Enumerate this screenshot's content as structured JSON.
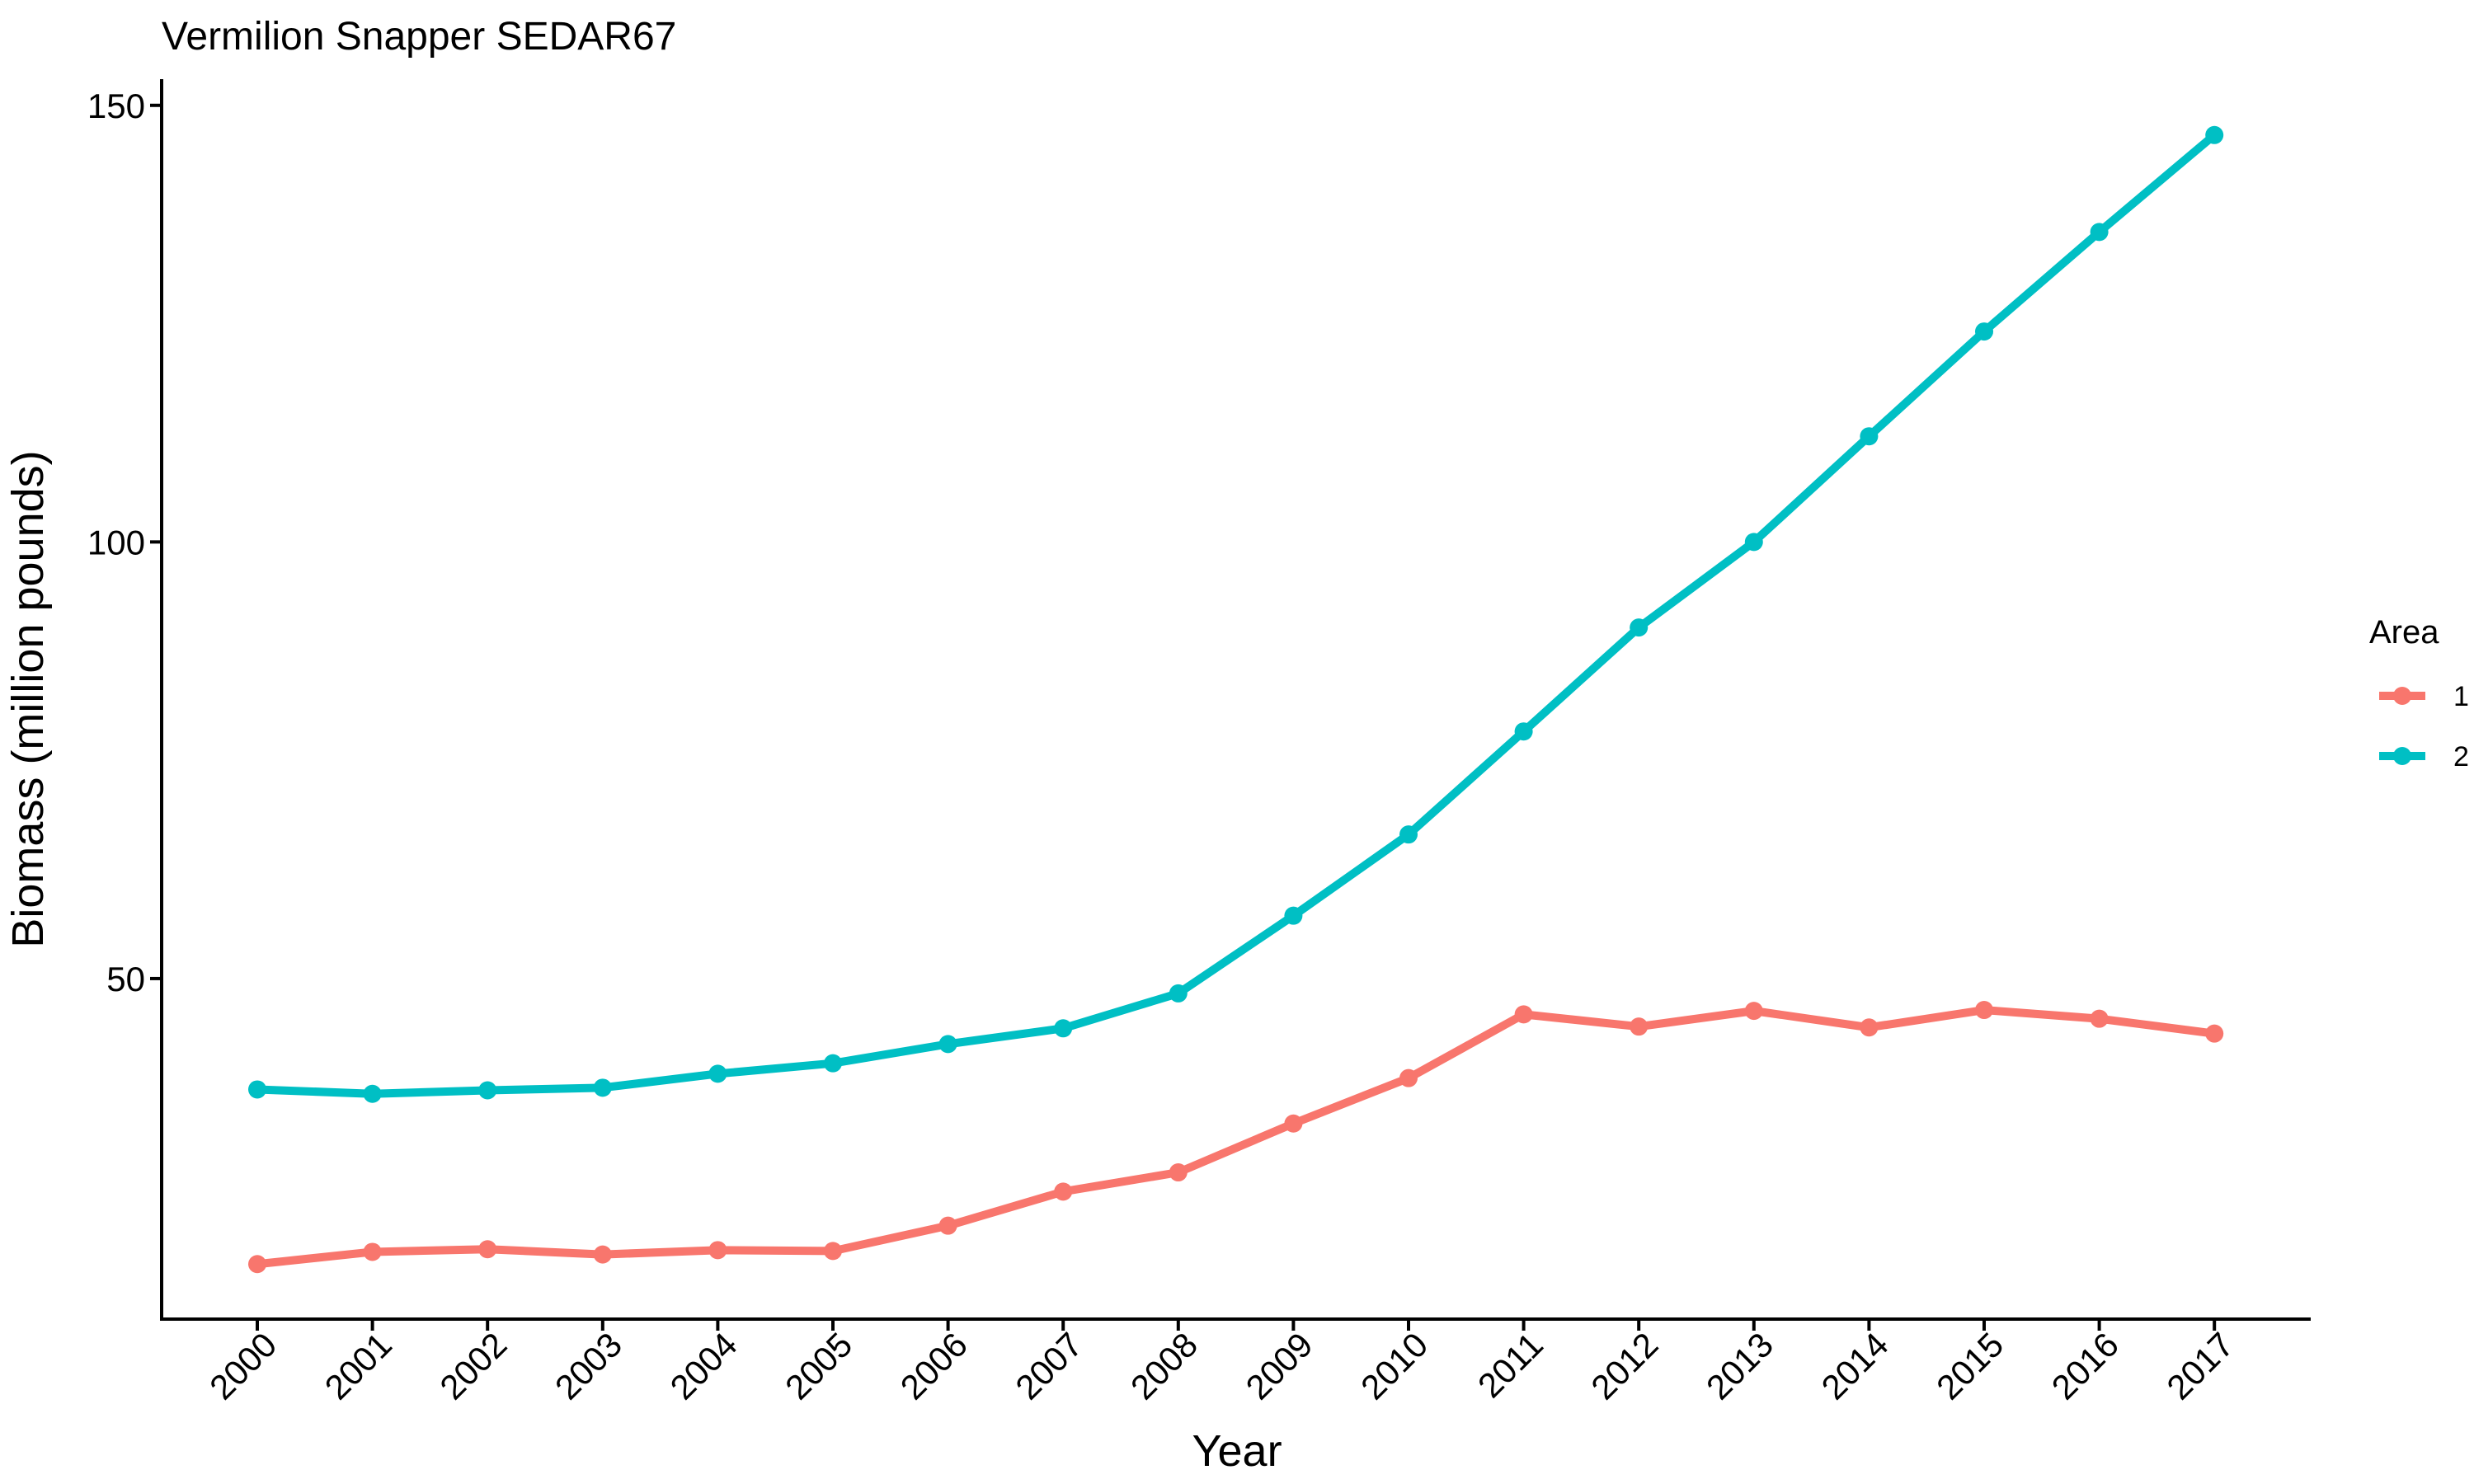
{
  "chart_data": {
    "type": "line",
    "title": "Vermilion Snapper SEDAR67",
    "xlabel": "Year",
    "ylabel": "Biomass (million pounds)",
    "x": [
      "2000",
      "2001",
      "2002",
      "2003",
      "2004",
      "2005",
      "2006",
      "2007",
      "2008",
      "2009",
      "2010",
      "2011",
      "2012",
      "2013",
      "2014",
      "2015",
      "2016",
      "2017"
    ],
    "ylim": [
      11,
      153
    ],
    "yticks": [
      50,
      100,
      150
    ],
    "grid": false,
    "legend": {
      "title": "Area",
      "position": "right"
    },
    "series": [
      {
        "name": "1",
        "color": "#F8766D",
        "values": [
          17.3,
          18.7,
          19.0,
          18.4,
          18.9,
          18.8,
          21.7,
          25.6,
          27.8,
          33.4,
          38.6,
          45.9,
          44.5,
          46.3,
          44.4,
          46.4,
          45.4,
          43.7
        ]
      },
      {
        "name": "2",
        "color": "#00BFC4",
        "values": [
          37.3,
          36.8,
          37.2,
          37.5,
          39.1,
          40.3,
          42.5,
          44.3,
          48.3,
          57.2,
          66.5,
          78.3,
          90.2,
          100.0,
          112.1,
          124.1,
          135.5,
          146.6
        ]
      }
    ]
  }
}
